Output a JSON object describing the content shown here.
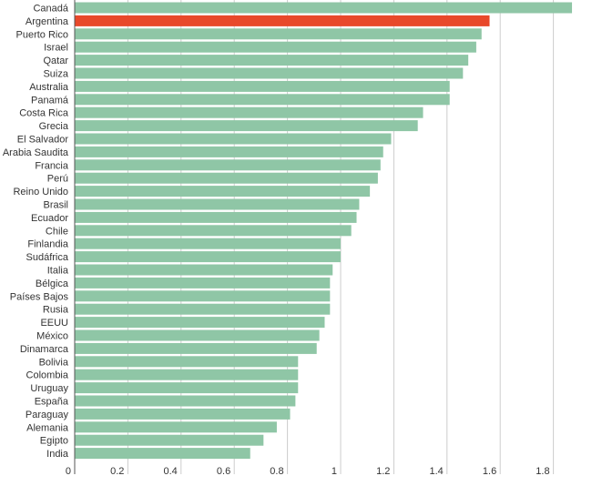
{
  "chart_data": {
    "type": "bar",
    "orientation": "horizontal",
    "title": "",
    "xlabel": "",
    "ylabel": "",
    "xlim": [
      0,
      1.9
    ],
    "ticks": [
      "0",
      "0.2",
      "0.4",
      "0.6",
      "0.8",
      "1",
      "1.2",
      "1.4",
      "1.6",
      "1.8"
    ],
    "grid": true,
    "colors": {
      "default": "#8fc6a6",
      "highlight": "#e8492b"
    },
    "highlight": "Argentina",
    "categories": [
      "Canadá",
      "Argentina",
      "Puerto Rico",
      "Israel",
      "Qatar",
      "Suiza",
      "Australia",
      "Panamá",
      "Costa Rica",
      "Grecia",
      "El Salvador",
      "Arabia Saudita",
      "Francia",
      "Perú",
      "Reino Unido",
      "Brasil",
      "Ecuador",
      "Chile",
      "Finlandia",
      "Sudáfrica",
      "Italia",
      "Bélgica",
      "Países Bajos",
      "Rusia",
      "EEUU",
      "México",
      "Dinamarca",
      "Bolivia",
      "Colombia",
      "Uruguay",
      "España",
      "Paraguay",
      "Alemania",
      "Egipto",
      "India"
    ],
    "values": [
      1.87,
      1.56,
      1.53,
      1.51,
      1.48,
      1.46,
      1.41,
      1.41,
      1.31,
      1.29,
      1.19,
      1.16,
      1.15,
      1.14,
      1.11,
      1.07,
      1.06,
      1.04,
      1.0,
      1.0,
      0.97,
      0.96,
      0.96,
      0.96,
      0.94,
      0.92,
      0.91,
      0.84,
      0.84,
      0.84,
      0.83,
      0.81,
      0.76,
      0.71,
      0.66
    ]
  }
}
